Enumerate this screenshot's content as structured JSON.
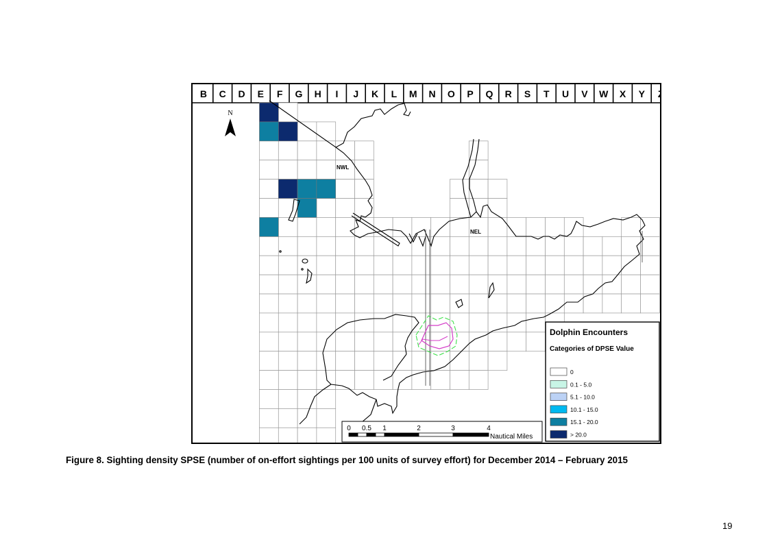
{
  "map": {
    "column_labels": [
      "B",
      "C",
      "D",
      "E",
      "F",
      "G",
      "H",
      "I",
      "J",
      "K",
      "L",
      "M",
      "N",
      "O",
      "P",
      "Q",
      "R",
      "S",
      "T",
      "U",
      "V",
      "W",
      "X",
      "Y",
      "Z"
    ],
    "north_label": "N",
    "area_labels": [
      "NWL",
      "NEL"
    ],
    "density_cells": [
      {
        "column": "F",
        "row": 1,
        "category": "> 20.0"
      },
      {
        "column": "F",
        "row": 2,
        "category": "15.1 - 20.0"
      },
      {
        "column": "G",
        "row": 2,
        "category": "> 20.0"
      },
      {
        "column": "G",
        "row": 5,
        "category": "> 20.0"
      },
      {
        "column": "H",
        "row": 5,
        "category": "15.1 - 20.0"
      },
      {
        "column": "I",
        "row": 5,
        "category": "15.1 - 20.0"
      },
      {
        "column": "H",
        "row": 6,
        "category": "15.1 - 20.0"
      },
      {
        "column": "F",
        "row": 7,
        "category": "15.1 - 20.0"
      }
    ]
  },
  "legend": {
    "title": "Dolphin Encounters",
    "subtitle": "Categories of DPSE Value",
    "items": [
      {
        "label": "0",
        "color": "#ffffff"
      },
      {
        "label": "0.1 - 5.0",
        "color": "#c8f5e6"
      },
      {
        "label": "5.1 - 10.0",
        "color": "#bcd2f5"
      },
      {
        "label": "10.1 - 15.0",
        "color": "#00b9f0"
      },
      {
        "label": "15.1 - 20.0",
        "color": "#0e7fa1"
      },
      {
        "label": "> 20.0",
        "color": "#0c2a6e"
      }
    ]
  },
  "scale_bar": {
    "ticks": [
      "0",
      "0.5",
      "1",
      "2",
      "3",
      "4"
    ],
    "unit": "Nautical Miles"
  },
  "caption": "Figure 8. Sighting density SPSE (number of on-effort sightings per 100 units of survey effort) for December 2014 – February 2015",
  "page_number": "19"
}
